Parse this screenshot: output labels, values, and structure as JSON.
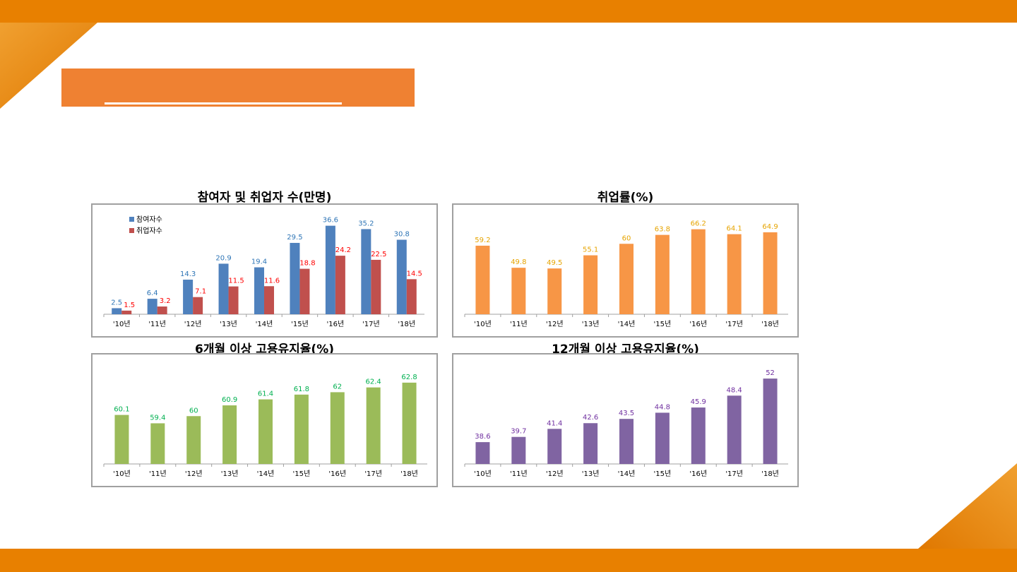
{
  "theme": {
    "accent": "#e88000",
    "banner": "#ef8132"
  },
  "chart_data": [
    {
      "type": "bar",
      "title": "참여자 및 취업자 수(만명)",
      "categories": [
        "'10년",
        "'11년",
        "'12년",
        "'13년",
        "'14년",
        "'15년",
        "'16년",
        "'17년",
        "'18년"
      ],
      "series": [
        {
          "name": "참여자수",
          "color": "#4f81bd",
          "label_color": "#2e75b6",
          "values": [
            2.5,
            6.4,
            14.3,
            20.9,
            19.4,
            29.5,
            36.6,
            35.2,
            30.8
          ]
        },
        {
          "name": "취업자수",
          "color": "#c0504d",
          "label_color": "#ff0000",
          "values": [
            1.5,
            3.2,
            7.1,
            11.5,
            11.6,
            18.8,
            24.2,
            22.5,
            14.5
          ]
        }
      ],
      "ylim": [
        0,
        40
      ],
      "legend": "top-left",
      "xlabel": "",
      "ylabel": ""
    },
    {
      "type": "bar",
      "title": "취업률(%)",
      "categories": [
        "'10년",
        "'11년",
        "'12년",
        "'13년",
        "'14년",
        "'15년",
        "'16년",
        "'17년",
        "'18년"
      ],
      "series": [
        {
          "name": "취업률",
          "color": "#f79646",
          "label_color": "#e6a400",
          "values": [
            59.2,
            49.8,
            49.5,
            55.1,
            60,
            63.8,
            66.2,
            64.1,
            64.9
          ]
        }
      ],
      "ylim": [
        30,
        70
      ],
      "xlabel": "",
      "ylabel": ""
    },
    {
      "type": "bar",
      "title": "6개월 이상 고용유지율(%)",
      "categories": [
        "'10년",
        "'11년",
        "'12년",
        "'13년",
        "'14년",
        "'15년",
        "'16년",
        "'17년",
        "'18년"
      ],
      "series": [
        {
          "name": "6개월 이상 고용유지율",
          "color": "#9bbb59",
          "label_color": "#00b050",
          "values": [
            60.1,
            59.4,
            60,
            60.9,
            61.4,
            61.8,
            62,
            62.4,
            62.8
          ]
        }
      ],
      "ylim": [
        56,
        63.5
      ],
      "xlabel": "",
      "ylabel": ""
    },
    {
      "type": "bar",
      "title": "12개월 이상 고용유지율(%)",
      "categories": [
        "'10년",
        "'11년",
        "'12년",
        "'13년",
        "'14년",
        "'15년",
        "'16년",
        "'17년",
        "'18년"
      ],
      "series": [
        {
          "name": "12개월 이상 고용유지율",
          "color": "#8064a2",
          "label_color": "#7030a0",
          "values": [
            38.6,
            39.7,
            41.4,
            42.6,
            43.5,
            44.8,
            45.9,
            48.4,
            52
          ]
        }
      ],
      "ylim": [
        34,
        53.5
      ],
      "xlabel": "",
      "ylabel": ""
    }
  ]
}
